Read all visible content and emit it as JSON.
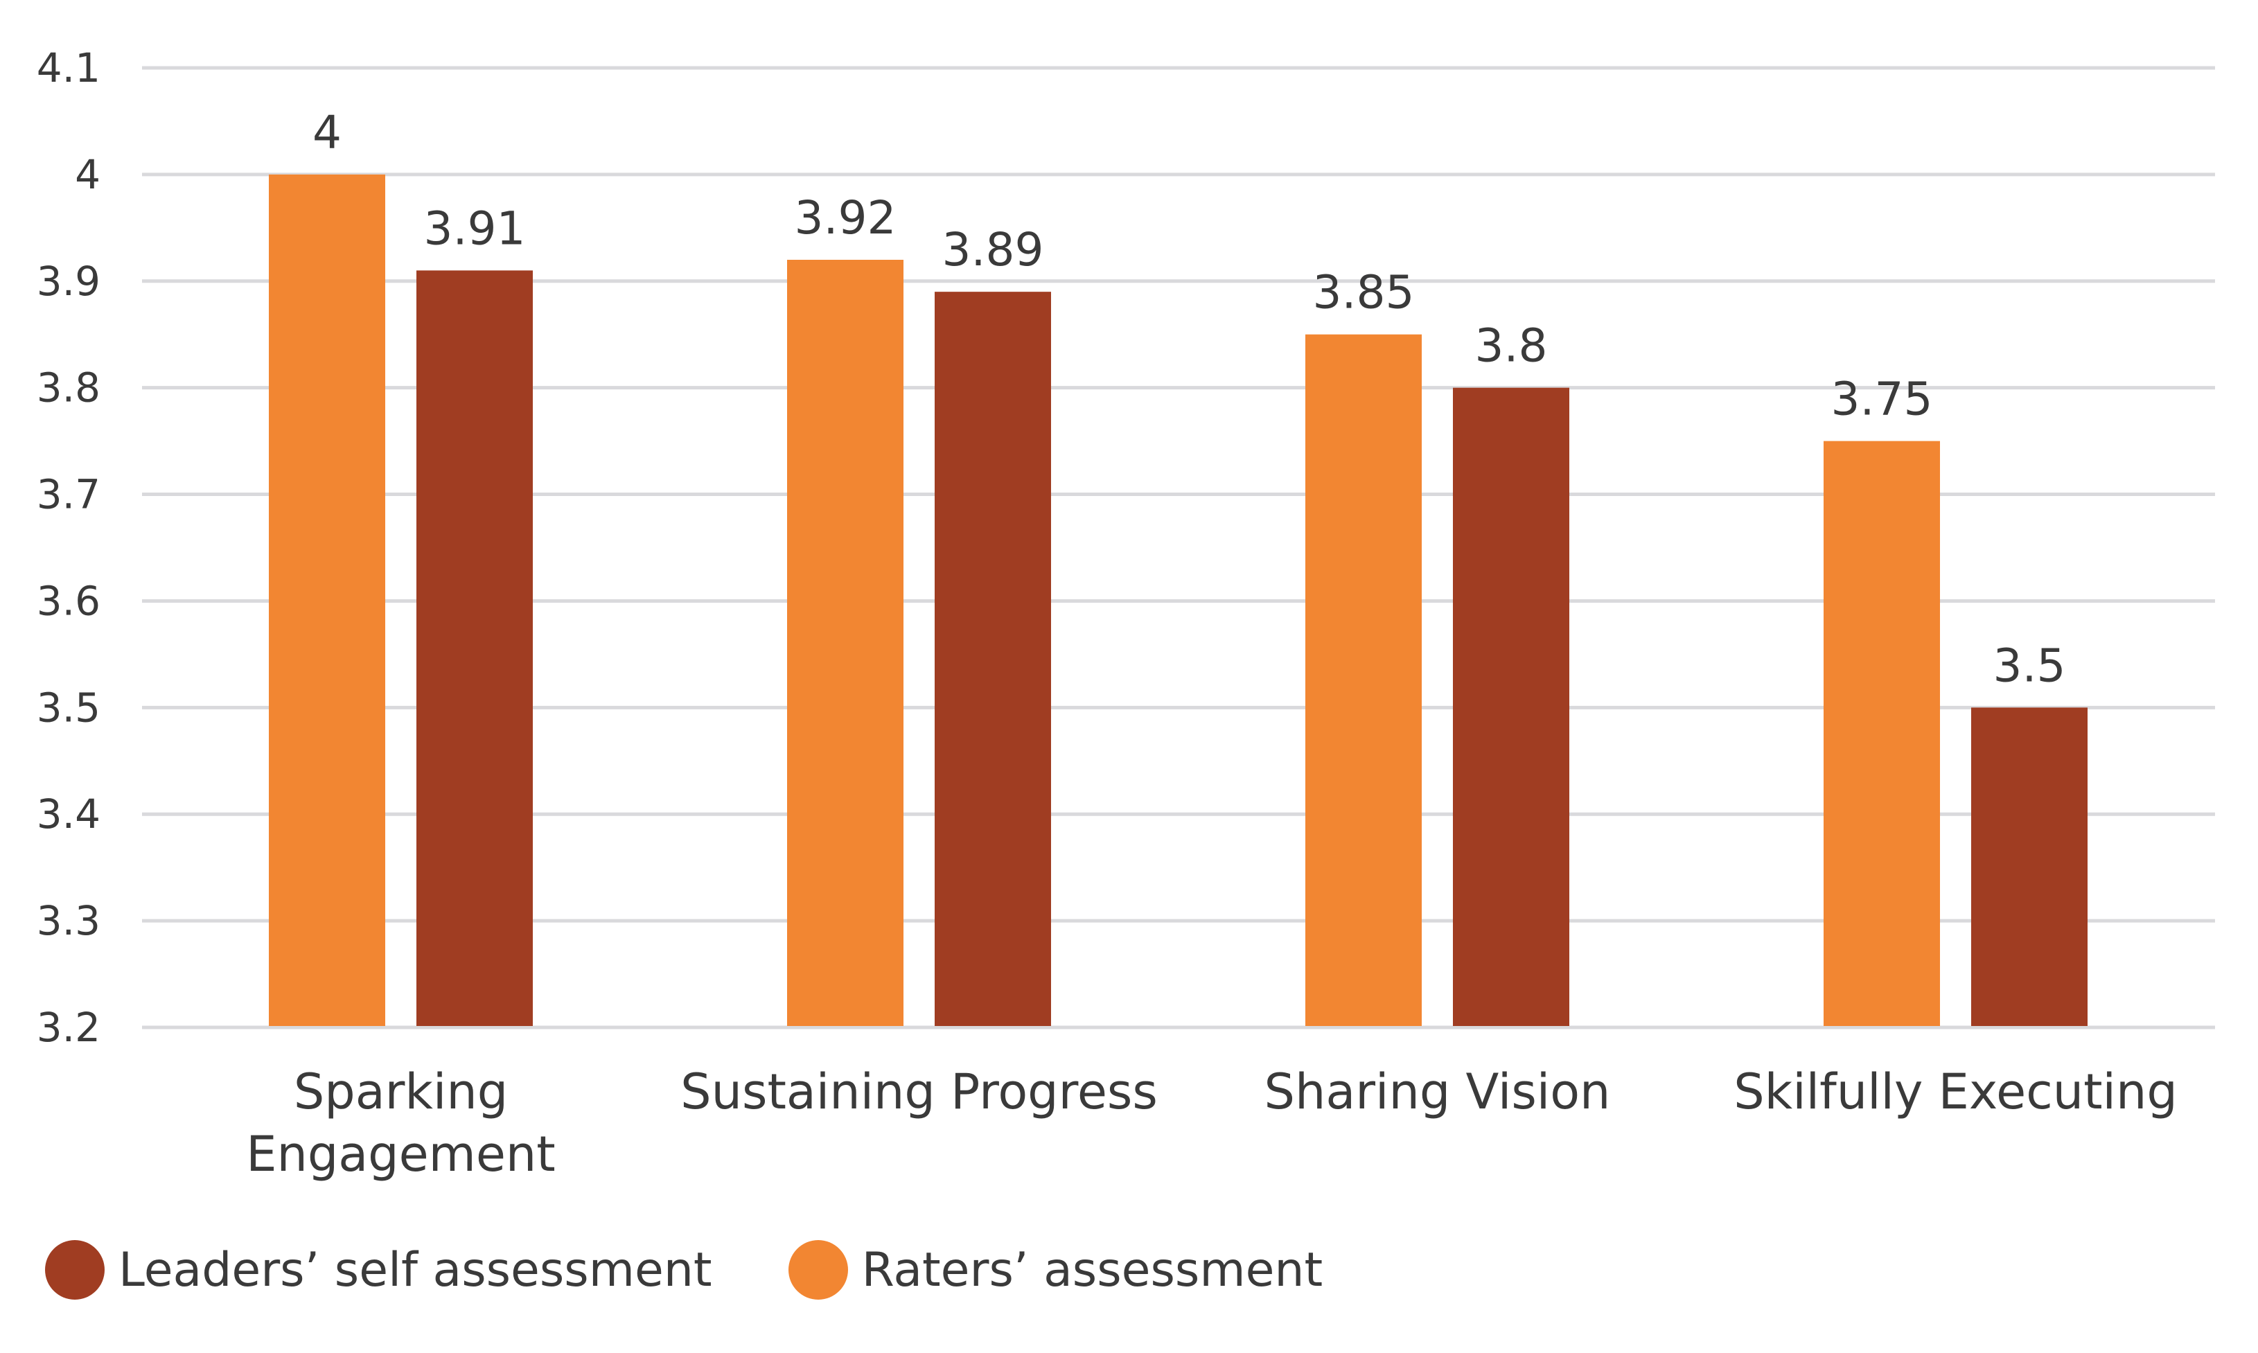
{
  "chart_data": {
    "type": "bar",
    "title": "",
    "xlabel": "",
    "ylabel": "",
    "categories": [
      "Sparking Engagement",
      "Sustaining Progress",
      "Sharing Vision",
      "Skilfully Executing"
    ],
    "category_lines": [
      [
        "Sparking",
        "Engagement"
      ],
      [
        "Sustaining Progress"
      ],
      [
        "Sharing Vision"
      ],
      [
        "Skilfully Executing"
      ]
    ],
    "series": [
      {
        "name": "Raters’ assessment",
        "color": "#F28632",
        "values": [
          4,
          3.92,
          3.85,
          3.75
        ],
        "labels": [
          "4",
          "3.92",
          "3.85",
          "3.75"
        ]
      },
      {
        "name": "Leaders’ self assessment",
        "color": "#A03D22",
        "values": [
          3.91,
          3.89,
          3.8,
          3.5
        ],
        "labels": [
          "3.91",
          "3.89",
          "3.8",
          "3.5"
        ]
      }
    ],
    "ylim": [
      3.2,
      4.1
    ],
    "yticks": [
      "3.2",
      "3.3",
      "3.4",
      "3.5",
      "3.6",
      "3.7",
      "3.8",
      "3.9",
      "4",
      "4.1"
    ],
    "ytick_values": [
      3.2,
      3.3,
      3.4,
      3.5,
      3.6,
      3.7,
      3.8,
      3.9,
      4.0,
      4.1
    ],
    "grid": true,
    "gridline_color": "#D9D9DC",
    "legend_position": "bottom-left",
    "legend": [
      {
        "name": "Leaders’ self assessment",
        "color": "#A03D22"
      },
      {
        "name": "Raters’ assessment",
        "color": "#F28632"
      }
    ]
  }
}
